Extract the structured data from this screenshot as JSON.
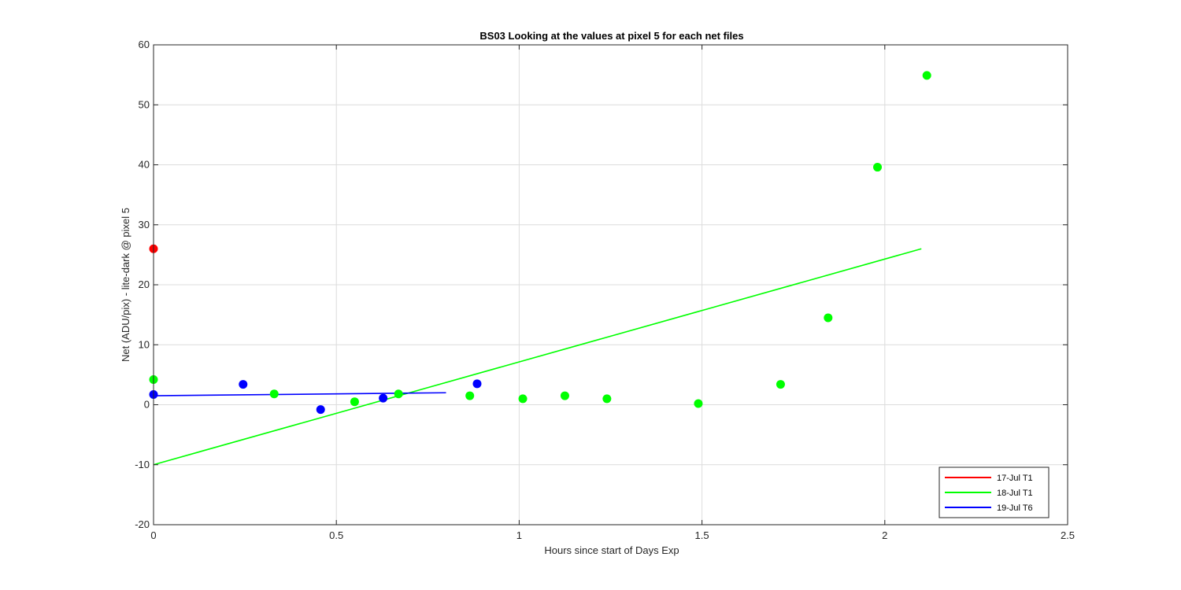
{
  "chart_data": {
    "type": "scatter",
    "title": "BS03  Looking at the values at pixel 5 for each net files",
    "xlabel": "Hours since start of Days Exp",
    "ylabel": "Net (ADU/pix) - lite-dark @ pixel 5",
    "xlim": [
      0,
      2.5
    ],
    "ylim": [
      -20,
      60
    ],
    "xticks": [
      0,
      0.5,
      1,
      1.5,
      2,
      2.5
    ],
    "xtick_labels": [
      "0",
      "0.5",
      "1",
      "1.5",
      "2",
      "2.5"
    ],
    "yticks": [
      -20,
      -10,
      0,
      10,
      20,
      30,
      40,
      50,
      60
    ],
    "ytick_labels": [
      "-20",
      "-10",
      "0",
      "10",
      "20",
      "30",
      "40",
      "50",
      "60"
    ],
    "grid": true,
    "legend_position": "bottom-right",
    "series": [
      {
        "name": "17-Jul T1",
        "color": "#ff0000",
        "points": [
          [
            0,
            26
          ]
        ],
        "fit_line": null
      },
      {
        "name": "18-Jul T1",
        "color": "#00ff00",
        "points": [
          [
            0,
            4.2
          ],
          [
            0.33,
            1.8
          ],
          [
            0.55,
            0.5
          ],
          [
            0.67,
            1.8
          ],
          [
            0.865,
            1.5
          ],
          [
            1.01,
            1.0
          ],
          [
            1.125,
            1.5
          ],
          [
            1.24,
            1.0
          ],
          [
            1.49,
            0.2
          ],
          [
            1.715,
            3.4
          ],
          [
            1.845,
            14.5
          ],
          [
            1.98,
            39.6
          ],
          [
            2.115,
            54.9
          ]
        ],
        "fit_line": [
          [
            0,
            -10
          ],
          [
            2.1,
            26
          ]
        ]
      },
      {
        "name": "19-Jul T6",
        "color": "#0000ff",
        "points": [
          [
            0,
            1.7
          ],
          [
            0.245,
            3.4
          ],
          [
            0.457,
            -0.8
          ],
          [
            0.628,
            1.1
          ],
          [
            0.885,
            3.5
          ]
        ],
        "fit_line": [
          [
            0,
            1.5
          ],
          [
            0.8,
            2.0
          ]
        ]
      }
    ]
  }
}
